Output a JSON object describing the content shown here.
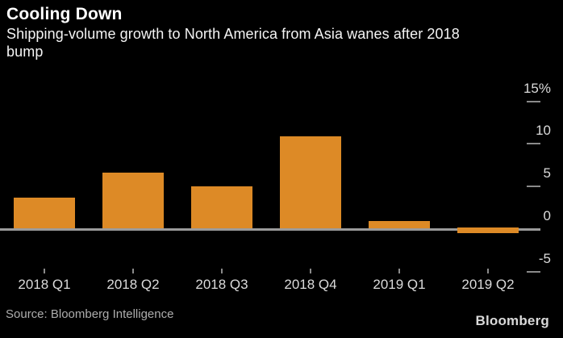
{
  "header": {
    "title": "Cooling Down",
    "subtitle_line1": "Shipping-volume growth to North America from Asia wanes after 2018",
    "subtitle_line2": "bump"
  },
  "chart_data": {
    "type": "bar",
    "title": "Cooling Down",
    "subtitle": "Shipping-volume growth to North America from Asia wanes after 2018 bump",
    "categories": [
      "2018 Q1",
      "2018 Q2",
      "2018 Q3",
      "2018 Q4",
      "2019 Q1",
      "2019 Q2"
    ],
    "values": [
      3.7,
      6.6,
      5.0,
      10.9,
      0.9,
      -0.5
    ],
    "unit": "%",
    "xlabel": "",
    "ylabel": "",
    "ylim": [
      -5,
      15
    ],
    "yticks": [
      {
        "label": "15%",
        "value": 15
      },
      {
        "label": "10",
        "value": 10
      },
      {
        "label": "5",
        "value": 5
      },
      {
        "label": "0",
        "value": 0
      },
      {
        "label": "-5",
        "value": -5
      }
    ],
    "grid": false,
    "legend": null,
    "zero_baseline": true,
    "axis_side": "right",
    "bar_color": "#DD8A26"
  },
  "footer": {
    "source": "Source: Bloomberg Intelligence",
    "brand": "Bloomberg"
  },
  "colors": {
    "background": "#000000",
    "bar": "#DD8A26",
    "zero_line": "#9B9B9B",
    "tick": "#8A8A8A",
    "axis_label": "#DBDBDB",
    "title": "#FFFFFF",
    "subtitle": "#F4F4F4",
    "source_text": "#ADADAD",
    "brand_text": "#D9D9D9"
  }
}
